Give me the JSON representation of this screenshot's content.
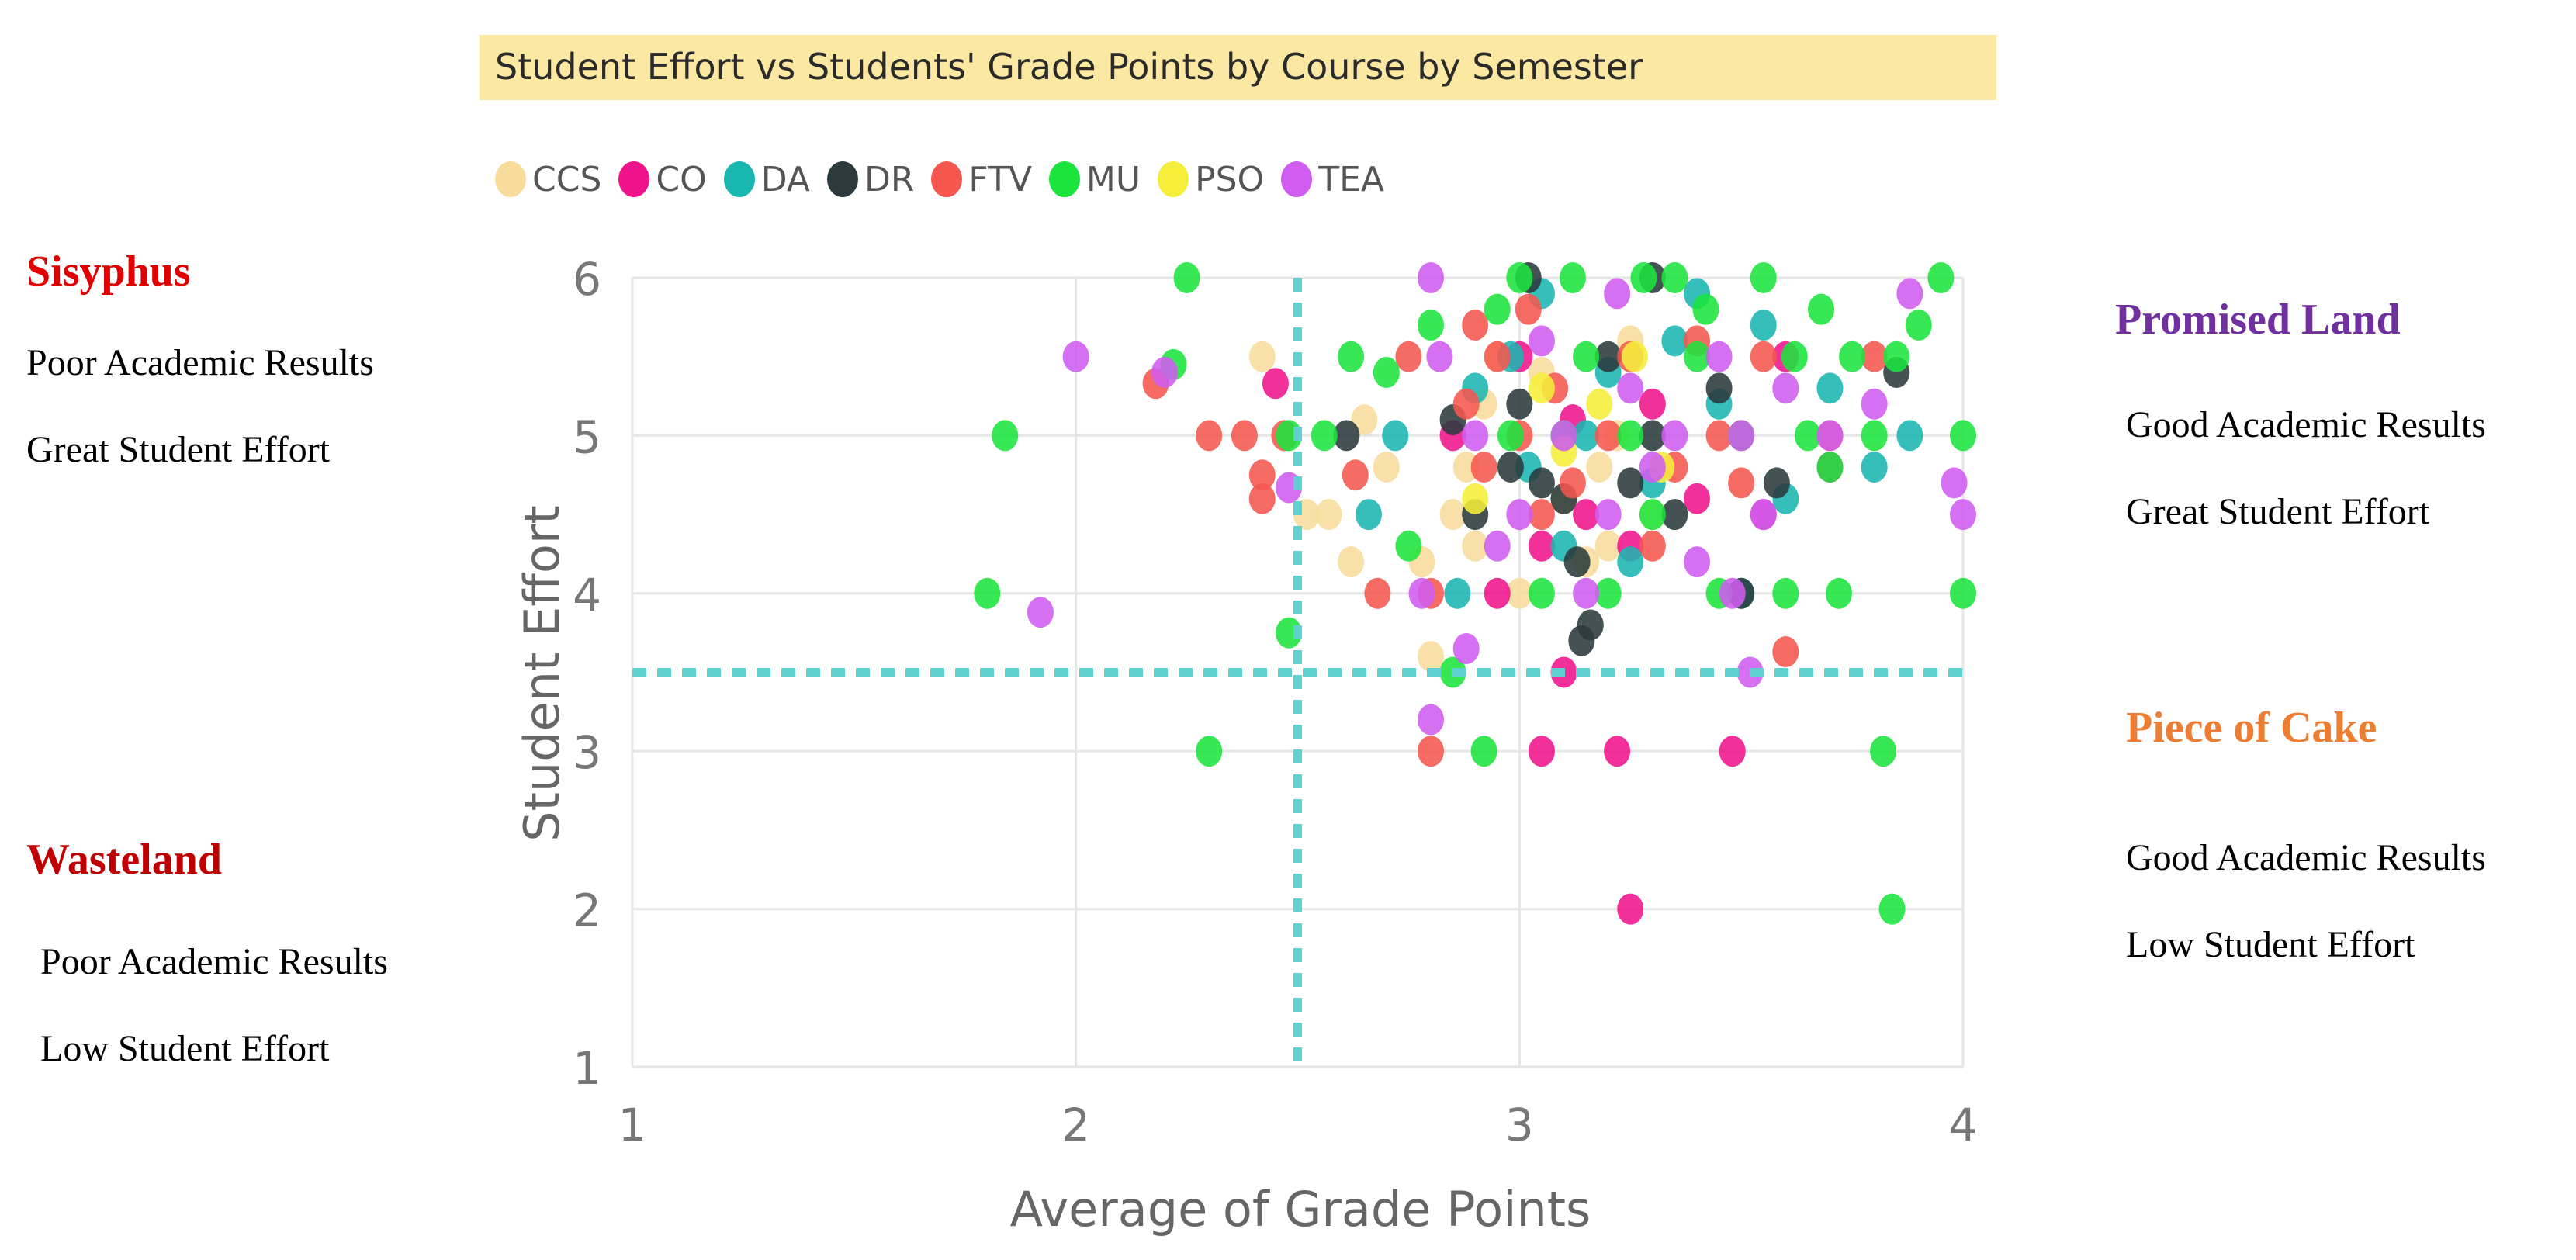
{
  "colors": {
    "CCS": "#f8dc9c",
    "CO": "#f0138c",
    "DA": "#1ab6b0",
    "DR": "#2b3a3c",
    "FTV": "#f5574f",
    "MU": "#1be43c",
    "PSO": "#f5ee3a",
    "TEA": "#d05cf0",
    "sisyphus": "#e00000",
    "wasteland": "#c00000",
    "promised": "#7030a0",
    "cake": "#ed7d31",
    "title_bg": "#fbe9a3",
    "threshold": "#5fcfcf"
  },
  "quadrants": {
    "sisyphus": {
      "title": "Sisyphus",
      "line1": "Poor Academic Results",
      "line2": "Great Student Effort"
    },
    "wasteland": {
      "title": "Wasteland",
      "line1": "Poor Academic Results",
      "line2": "Low Student Effort"
    },
    "promised": {
      "title": "Promised Land",
      "line1": "Good Academic Results",
      "line2": "Great Student Effort"
    },
    "cake": {
      "title": "Piece of Cake",
      "line1": "Good Academic Results",
      "line2": "Low Student Effort"
    }
  },
  "chart_data": {
    "type": "scatter",
    "title": "Student Effort vs Students' Grade Points by Course by Semester",
    "xlabel": "Average of Grade Points",
    "ylabel": "Student Effort",
    "xlim": [
      1,
      4
    ],
    "ylim": [
      1,
      6
    ],
    "xticks": [
      1,
      2,
      3,
      4
    ],
    "yticks": [
      1,
      2,
      3,
      4,
      5,
      6
    ],
    "xtick_labels": [
      "1",
      "2",
      "3",
      "4"
    ],
    "ytick_labels": [
      "1",
      "2",
      "3",
      "4",
      "5",
      "6"
    ],
    "grid": true,
    "legend_position": "top-left",
    "reference_lines": {
      "x": 2.5,
      "y": 3.5
    },
    "series": [
      {
        "name": "CCS",
        "points": [
          [
            2.42,
            5.5
          ],
          [
            2.52,
            4.5
          ],
          [
            2.57,
            4.5
          ],
          [
            2.62,
            4.2
          ],
          [
            2.65,
            5.1
          ],
          [
            2.7,
            4.8
          ],
          [
            2.78,
            4.2
          ],
          [
            2.8,
            3.6
          ],
          [
            2.85,
            4.5
          ],
          [
            2.88,
            4.8
          ],
          [
            2.9,
            4.3
          ],
          [
            2.92,
            5.2
          ],
          [
            2.95,
            5.5
          ],
          [
            3.0,
            4.0
          ],
          [
            3.05,
            5.4
          ],
          [
            3.1,
            4.6
          ],
          [
            3.15,
            4.2
          ],
          [
            3.18,
            4.8
          ],
          [
            3.2,
            4.3
          ],
          [
            3.22,
            5.0
          ],
          [
            3.25,
            5.6
          ],
          [
            3.3,
            4.5
          ]
        ]
      },
      {
        "name": "CO",
        "points": [
          [
            2.45,
            5.33
          ],
          [
            3.25,
            2.0
          ],
          [
            3.05,
            3.0
          ],
          [
            3.22,
            3.0
          ],
          [
            3.48,
            3.0
          ],
          [
            3.1,
            3.5
          ],
          [
            3.05,
            4.3
          ],
          [
            2.85,
            5.0
          ],
          [
            3.0,
            5.5
          ],
          [
            3.15,
            4.5
          ],
          [
            3.25,
            4.3
          ],
          [
            3.3,
            5.2
          ],
          [
            3.4,
            4.6
          ],
          [
            3.5,
            5.0
          ],
          [
            3.55,
            4.5
          ],
          [
            3.6,
            5.5
          ],
          [
            3.7,
            4.8
          ],
          [
            2.95,
            4.0
          ],
          [
            3.12,
            5.1
          ]
        ]
      },
      {
        "name": "DA",
        "points": [
          [
            2.66,
            4.5
          ],
          [
            2.72,
            5.0
          ],
          [
            2.86,
            4.0
          ],
          [
            2.9,
            5.3
          ],
          [
            2.98,
            5.5
          ],
          [
            3.02,
            4.8
          ],
          [
            3.1,
            4.3
          ],
          [
            3.15,
            5.0
          ],
          [
            3.2,
            5.4
          ],
          [
            3.25,
            4.2
          ],
          [
            3.3,
            4.7
          ],
          [
            3.35,
            5.6
          ],
          [
            3.45,
            5.2
          ],
          [
            3.5,
            4.0
          ],
          [
            3.55,
            5.7
          ],
          [
            3.6,
            4.6
          ],
          [
            3.7,
            5.3
          ],
          [
            3.8,
            4.8
          ],
          [
            3.88,
            5.0
          ],
          [
            3.05,
            5.9
          ],
          [
            3.4,
            5.9
          ]
        ]
      },
      {
        "name": "DR",
        "points": [
          [
            2.61,
            5.0
          ],
          [
            2.85,
            5.1
          ],
          [
            2.9,
            4.5
          ],
          [
            2.98,
            4.8
          ],
          [
            3.0,
            5.2
          ],
          [
            3.05,
            4.7
          ],
          [
            3.1,
            4.6
          ],
          [
            3.13,
            4.2
          ],
          [
            3.14,
            3.7
          ],
          [
            3.16,
            3.8
          ],
          [
            3.2,
            5.5
          ],
          [
            3.25,
            4.7
          ],
          [
            3.3,
            5.0
          ],
          [
            3.35,
            4.5
          ],
          [
            3.45,
            5.3
          ],
          [
            3.5,
            4.0
          ],
          [
            3.58,
            4.7
          ],
          [
            3.85,
            5.4
          ],
          [
            3.02,
            6.0
          ],
          [
            3.3,
            6.0
          ]
        ]
      },
      {
        "name": "FTV",
        "points": [
          [
            2.18,
            5.33
          ],
          [
            2.3,
            5.0
          ],
          [
            2.38,
            5.0
          ],
          [
            2.42,
            4.75
          ],
          [
            2.42,
            4.6
          ],
          [
            2.47,
            5.0
          ],
          [
            2.63,
            4.75
          ],
          [
            2.68,
            4.0
          ],
          [
            2.75,
            5.5
          ],
          [
            2.8,
            4.0
          ],
          [
            2.8,
            3.0
          ],
          [
            2.88,
            5.2
          ],
          [
            2.92,
            4.8
          ],
          [
            2.95,
            5.5
          ],
          [
            3.0,
            5.0
          ],
          [
            3.02,
            5.8
          ],
          [
            3.05,
            4.5
          ],
          [
            3.08,
            5.3
          ],
          [
            3.12,
            4.7
          ],
          [
            3.2,
            5.0
          ],
          [
            3.25,
            5.5
          ],
          [
            3.3,
            4.3
          ],
          [
            3.35,
            4.8
          ],
          [
            3.4,
            5.6
          ],
          [
            3.45,
            5.0
          ],
          [
            3.5,
            4.7
          ],
          [
            3.55,
            5.5
          ],
          [
            3.6,
            3.63
          ],
          [
            3.7,
            5.0
          ],
          [
            3.8,
            5.5
          ],
          [
            2.9,
            5.7
          ]
        ]
      },
      {
        "name": "MU",
        "points": [
          [
            1.8,
            4.0
          ],
          [
            1.84,
            5.0
          ],
          [
            2.22,
            5.45
          ],
          [
            2.25,
            6.0
          ],
          [
            2.3,
            3.0
          ],
          [
            2.48,
            3.75
          ],
          [
            2.48,
            5.0
          ],
          [
            2.56,
            5.0
          ],
          [
            2.62,
            5.5
          ],
          [
            2.7,
            5.4
          ],
          [
            2.75,
            4.3
          ],
          [
            2.8,
            5.7
          ],
          [
            2.85,
            3.5
          ],
          [
            2.92,
            3.0
          ],
          [
            2.95,
            5.8
          ],
          [
            3.0,
            6.0
          ],
          [
            3.05,
            4.0
          ],
          [
            3.1,
            5.0
          ],
          [
            3.15,
            5.5
          ],
          [
            3.2,
            4.0
          ],
          [
            3.25,
            5.0
          ],
          [
            3.3,
            4.5
          ],
          [
            3.35,
            6.0
          ],
          [
            3.4,
            5.5
          ],
          [
            3.45,
            4.0
          ],
          [
            3.5,
            5.0
          ],
          [
            3.55,
            6.0
          ],
          [
            3.6,
            4.0
          ],
          [
            3.62,
            5.5
          ],
          [
            3.65,
            5.0
          ],
          [
            3.7,
            4.8
          ],
          [
            3.72,
            4.0
          ],
          [
            3.75,
            5.5
          ],
          [
            3.8,
            5.0
          ],
          [
            3.82,
            3.0
          ],
          [
            3.84,
            2.0
          ],
          [
            3.85,
            5.5
          ],
          [
            3.9,
            5.7
          ],
          [
            3.95,
            6.0
          ],
          [
            4.0,
            4.0
          ],
          [
            4.0,
            5.0
          ],
          [
            2.98,
            5.0
          ],
          [
            3.12,
            6.0
          ],
          [
            3.28,
            6.0
          ],
          [
            3.42,
            5.8
          ],
          [
            3.68,
            5.8
          ]
        ]
      },
      {
        "name": "PSO",
        "points": [
          [
            2.9,
            4.6
          ],
          [
            3.05,
            5.3
          ],
          [
            3.1,
            4.9
          ],
          [
            3.18,
            5.2
          ],
          [
            3.26,
            5.5
          ],
          [
            3.32,
            4.8
          ]
        ]
      },
      {
        "name": "TEA",
        "points": [
          [
            1.92,
            3.88
          ],
          [
            2.0,
            5.5
          ],
          [
            2.2,
            5.4
          ],
          [
            2.48,
            4.67
          ],
          [
            2.78,
            4.0
          ],
          [
            2.8,
            3.2
          ],
          [
            2.82,
            5.5
          ],
          [
            2.88,
            3.65
          ],
          [
            2.9,
            5.0
          ],
          [
            2.95,
            4.3
          ],
          [
            3.0,
            4.5
          ],
          [
            3.05,
            5.6
          ],
          [
            3.1,
            5.0
          ],
          [
            3.15,
            4.0
          ],
          [
            3.2,
            4.5
          ],
          [
            3.25,
            5.3
          ],
          [
            3.3,
            4.8
          ],
          [
            3.35,
            5.0
          ],
          [
            3.4,
            4.2
          ],
          [
            3.45,
            5.5
          ],
          [
            3.48,
            4.0
          ],
          [
            3.5,
            5.0
          ],
          [
            3.52,
            3.5
          ],
          [
            3.55,
            4.5
          ],
          [
            3.6,
            5.3
          ],
          [
            3.7,
            5.0
          ],
          [
            3.8,
            5.2
          ],
          [
            3.88,
            5.9
          ],
          [
            3.98,
            4.7
          ],
          [
            4.0,
            4.5
          ],
          [
            2.8,
            6.0
          ],
          [
            3.22,
            5.9
          ]
        ]
      }
    ]
  }
}
